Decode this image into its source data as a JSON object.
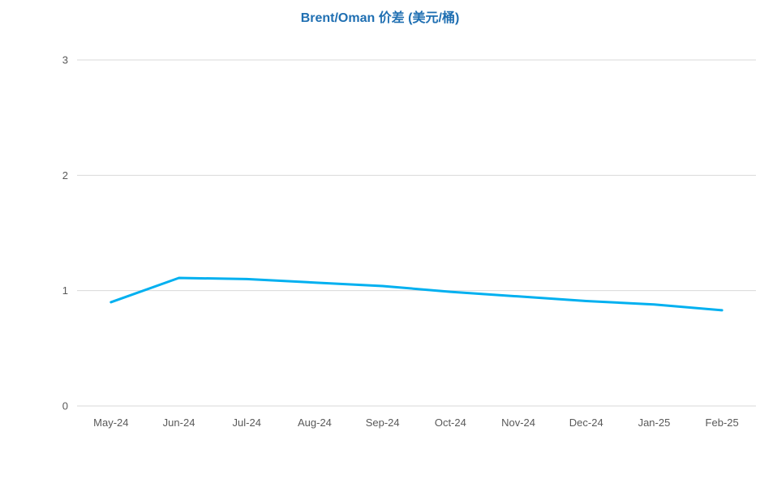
{
  "chart_data": {
    "type": "line",
    "title": "Brent/Oman 价差 (美元/桶)",
    "xlabel": "",
    "ylabel": "",
    "categories": [
      "May-24",
      "Jun-24",
      "Jul-24",
      "Aug-24",
      "Sep-24",
      "Oct-24",
      "Nov-24",
      "Dec-24",
      "Jan-25",
      "Feb-25"
    ],
    "series": [
      {
        "values": [
          0.9,
          1.11,
          1.1,
          1.07,
          1.04,
          0.99,
          0.95,
          0.91,
          0.88,
          0.83
        ],
        "color": "#00b0f0"
      }
    ],
    "ylim": [
      0,
      3
    ],
    "yticks": [
      0,
      1,
      2,
      3
    ],
    "grid": true,
    "legend": "none"
  }
}
